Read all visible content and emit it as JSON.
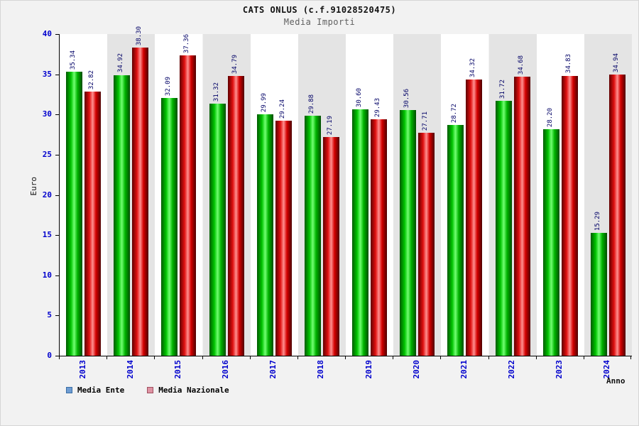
{
  "header": {
    "title": "CATS ONLUS (c.f.91028520475)",
    "subtitle": "Media Importi"
  },
  "axes": {
    "y_label": "Euro",
    "x_label": "Anno",
    "y_ticks": [
      0,
      5,
      10,
      15,
      20,
      25,
      30,
      35,
      40
    ]
  },
  "legend": [
    {
      "label": "Media Ente",
      "swatch_color": "#6e9cd2",
      "swatch_border": "#3a6ea5"
    },
    {
      "label": "Media Nazionale",
      "swatch_color": "#de93a3",
      "swatch_border": "#a05060"
    }
  ],
  "colors": {
    "ente_bar_center": "#72ff72",
    "ente_bar_edge": "#005a00",
    "nazionale_bar_center": "#ff9090",
    "nazionale_bar_edge": "#5f0000",
    "axis_text": "#0000cd",
    "value_text": "#000066"
  },
  "chart_data": {
    "type": "bar",
    "title": "CATS ONLUS (c.f.91028520475)",
    "subtitle": "Media Importi",
    "categories": [
      "2013",
      "2014",
      "2015",
      "2016",
      "2017",
      "2018",
      "2019",
      "2020",
      "2021",
      "2022",
      "2023",
      "2024"
    ],
    "series": [
      {
        "name": "Media Ente",
        "values": [
          35.34,
          34.92,
          32.09,
          31.32,
          29.99,
          29.88,
          30.6,
          30.56,
          28.72,
          31.72,
          28.2,
          15.29
        ]
      },
      {
        "name": "Media Nazionale",
        "values": [
          32.82,
          38.3,
          37.36,
          34.79,
          29.24,
          27.19,
          29.43,
          27.71,
          34.32,
          34.68,
          34.83,
          34.94
        ]
      }
    ],
    "xlabel": "Anno",
    "ylabel": "Euro",
    "ylim": [
      0,
      40
    ],
    "ytick_step": 5,
    "grid": false,
    "legend_position": "bottom-left",
    "value_labels": "rotated-90",
    "background_bands": "alternating"
  }
}
